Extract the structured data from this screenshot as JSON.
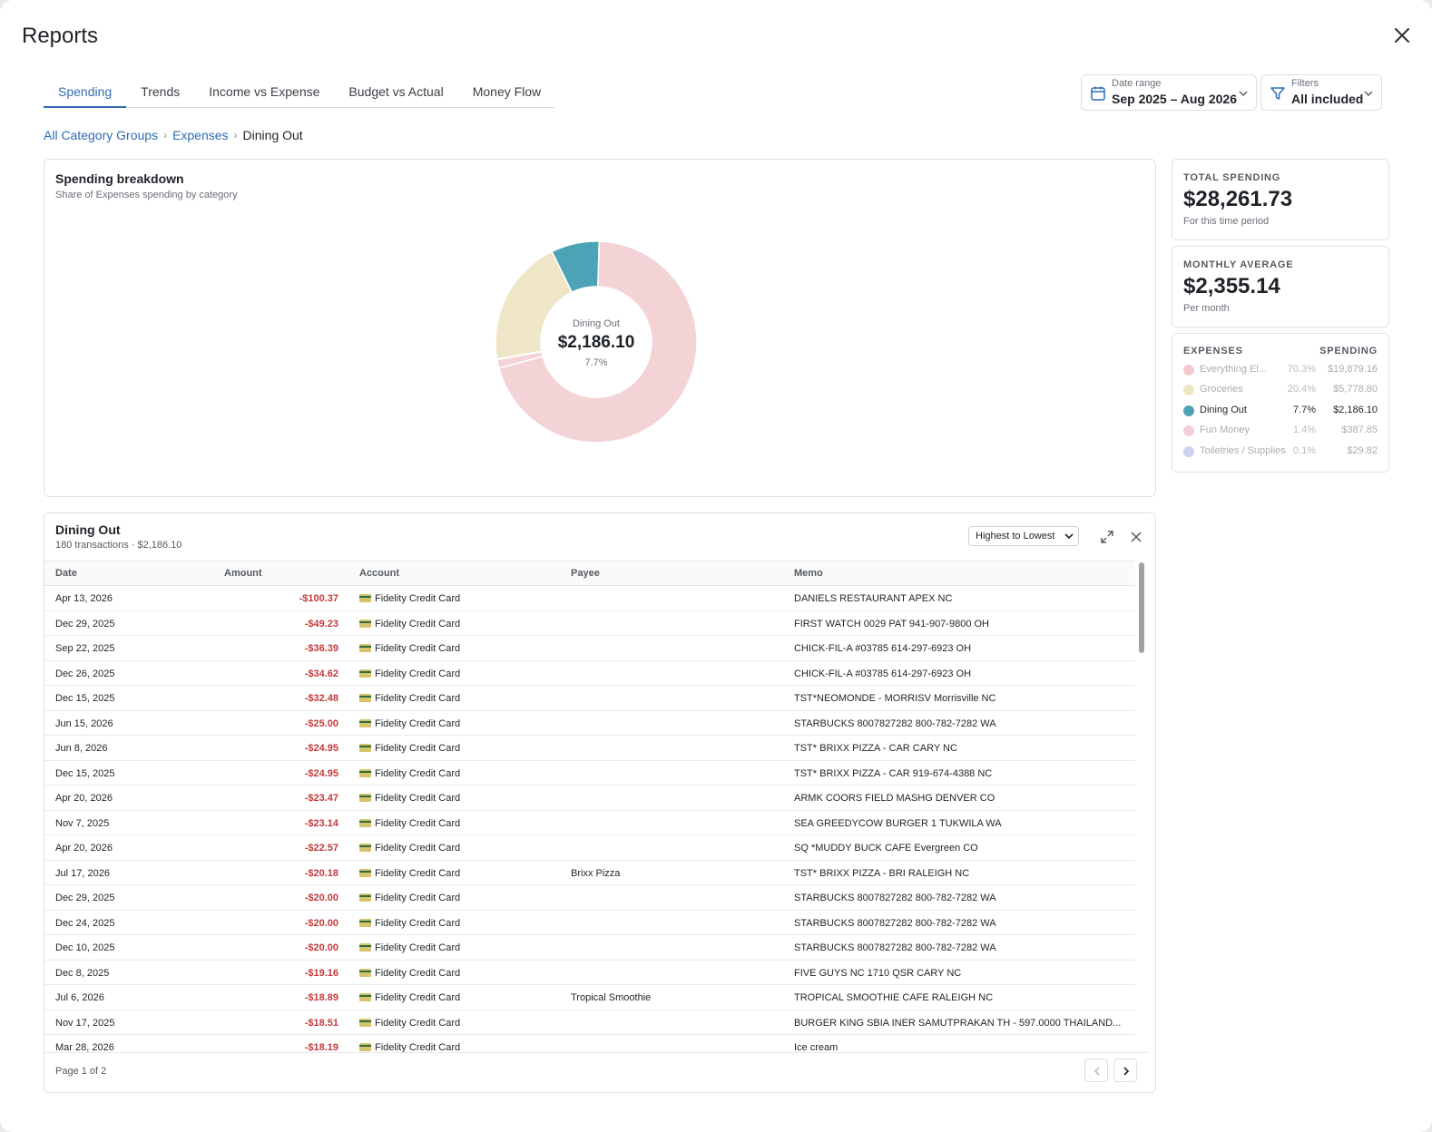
{
  "window": {
    "title": "Reports"
  },
  "tabs": [
    {
      "label": "Spending"
    },
    {
      "label": "Trends"
    },
    {
      "label": "Income vs Expense"
    },
    {
      "label": "Budget vs Actual"
    },
    {
      "label": "Money Flow"
    }
  ],
  "active_tab": "Spending",
  "date_range": {
    "label": "Date range",
    "value": "Sep 2025 – Aug 2026"
  },
  "filters": {
    "label": "Filters",
    "value": "All included"
  },
  "breadcrumb": {
    "root": "All Category Groups",
    "group": "Expenses",
    "current": "Dining Out"
  },
  "breakdown": {
    "title": "Spending breakdown",
    "subtitle": "Share of Expenses spending by category",
    "center_label": "Dining Out",
    "center_value": "$2,186.10",
    "center_pct": "7.7%"
  },
  "chart_data": {
    "type": "pie",
    "labels": [
      "Everything El...",
      "Groceries",
      "Dining Out",
      "Fun Money",
      "Toiletries / Supplies"
    ],
    "values": [
      19879.16,
      5778.8,
      2186.1,
      387.85,
      29.82
    ],
    "percents": [
      70.3,
      20.4,
      7.7,
      1.4,
      0.1
    ],
    "colors": [
      "#f3d3d6",
      "#efe6c8",
      "#4ba3b5",
      "#f3d3d6",
      "#c9ccef"
    ],
    "highlighted": "Dining Out"
  },
  "stats": {
    "total": {
      "label": "TOTAL SPENDING",
      "value": "$28,261.73",
      "sub": "For this time period"
    },
    "monthly": {
      "label": "MONTHLY AVERAGE",
      "value": "$2,355.14",
      "sub": "Per month"
    }
  },
  "legend": {
    "head_left": "EXPENSES",
    "head_right": "SPENDING",
    "items": [
      {
        "name": "Everything El...",
        "pct": "70.3%",
        "amount": "$19,879.16",
        "color": "#f3c9ce"
      },
      {
        "name": "Groceries",
        "pct": "20.4%",
        "amount": "$5,778.80",
        "color": "#efe6c2"
      },
      {
        "name": "Dining Out",
        "pct": "7.7%",
        "amount": "$2,186.10",
        "color": "#4ba3b5"
      },
      {
        "name": "Fun Money",
        "pct": "1.4%",
        "amount": "$387.85",
        "color": "#f5cfd8"
      },
      {
        "name": "Toiletries / Supplies",
        "pct": "0.1%",
        "amount": "$29.82",
        "color": "#cfd1f2"
      }
    ]
  },
  "transactions": {
    "title": "Dining Out",
    "subtitle": "180 transactions · $2,186.10",
    "sort": "Highest to Lowest",
    "columns": [
      "Date",
      "Amount",
      "Account",
      "Payee",
      "Memo"
    ],
    "rows": [
      {
        "date": "Apr 13, 2026",
        "amount": "-$100.37",
        "account": "Fidelity Credit Card",
        "payee": "",
        "memo": "DANIELS RESTAURANT APEX NC"
      },
      {
        "date": "Dec 29, 2025",
        "amount": "-$49.23",
        "account": "Fidelity Credit Card",
        "payee": "",
        "memo": "FIRST WATCH 0029 PAT 941-907-9800 OH"
      },
      {
        "date": "Sep 22, 2025",
        "amount": "-$36.39",
        "account": "Fidelity Credit Card",
        "payee": "",
        "memo": "CHICK-FIL-A #03785 614-297-6923 OH"
      },
      {
        "date": "Dec 26, 2025",
        "amount": "-$34.62",
        "account": "Fidelity Credit Card",
        "payee": "",
        "memo": "CHICK-FIL-A #03785 614-297-6923 OH"
      },
      {
        "date": "Dec 15, 2025",
        "amount": "-$32.48",
        "account": "Fidelity Credit Card",
        "payee": "",
        "memo": "TST*NEOMONDE - MORRISV Morrisville NC"
      },
      {
        "date": "Jun 15, 2026",
        "amount": "-$25.00",
        "account": "Fidelity Credit Card",
        "payee": "",
        "memo": "STARBUCKS 8007827282 800-782-7282 WA"
      },
      {
        "date": "Jun 8, 2026",
        "amount": "-$24.95",
        "account": "Fidelity Credit Card",
        "payee": "",
        "memo": "TST* BRIXX PIZZA - CAR CARY NC"
      },
      {
        "date": "Dec 15, 2025",
        "amount": "-$24.95",
        "account": "Fidelity Credit Card",
        "payee": "",
        "memo": "TST* BRIXX PIZZA - CAR 919-674-4388 NC"
      },
      {
        "date": "Apr 20, 2026",
        "amount": "-$23.47",
        "account": "Fidelity Credit Card",
        "payee": "",
        "memo": "ARMK COORS FIELD MASHG DENVER CO"
      },
      {
        "date": "Nov 7, 2025",
        "amount": "-$23.14",
        "account": "Fidelity Credit Card",
        "payee": "",
        "memo": "SEA GREEDYCOW BURGER 1 TUKWILA WA"
      },
      {
        "date": "Apr 20, 2026",
        "amount": "-$22.57",
        "account": "Fidelity Credit Card",
        "payee": "",
        "memo": "SQ *MUDDY BUCK CAFE Evergreen CO"
      },
      {
        "date": "Jul 17, 2026",
        "amount": "-$20.18",
        "account": "Fidelity Credit Card",
        "payee": "Brixx Pizza",
        "memo": "TST* BRIXX PIZZA - BRI RALEIGH NC"
      },
      {
        "date": "Dec 29, 2025",
        "amount": "-$20.00",
        "account": "Fidelity Credit Card",
        "payee": "",
        "memo": "STARBUCKS 8007827282 800-782-7282 WA"
      },
      {
        "date": "Dec 24, 2025",
        "amount": "-$20.00",
        "account": "Fidelity Credit Card",
        "payee": "",
        "memo": "STARBUCKS 8007827282 800-782-7282 WA"
      },
      {
        "date": "Dec 10, 2025",
        "amount": "-$20.00",
        "account": "Fidelity Credit Card",
        "payee": "",
        "memo": "STARBUCKS 8007827282 800-782-7282 WA"
      },
      {
        "date": "Dec 8, 2025",
        "amount": "-$19.16",
        "account": "Fidelity Credit Card",
        "payee": "",
        "memo": "FIVE GUYS NC 1710 QSR CARY NC"
      },
      {
        "date": "Jul 6, 2026",
        "amount": "-$18.89",
        "account": "Fidelity Credit Card",
        "payee": "Tropical Smoothie",
        "memo": "TROPICAL SMOOTHIE CAFE RALEIGH NC"
      },
      {
        "date": "Nov 17, 2025",
        "amount": "-$18.51",
        "account": "Fidelity Credit Card",
        "payee": "",
        "memo": "BURGER KING SBIA INER SAMUTPRAKAN TH - 597.0000 THAILAND..."
      },
      {
        "date": "Mar 28, 2026",
        "amount": "-$18.19",
        "account": "Fidelity Credit Card",
        "payee": "",
        "memo": "Ice cream"
      }
    ],
    "page_info": "Page 1 of 2"
  }
}
